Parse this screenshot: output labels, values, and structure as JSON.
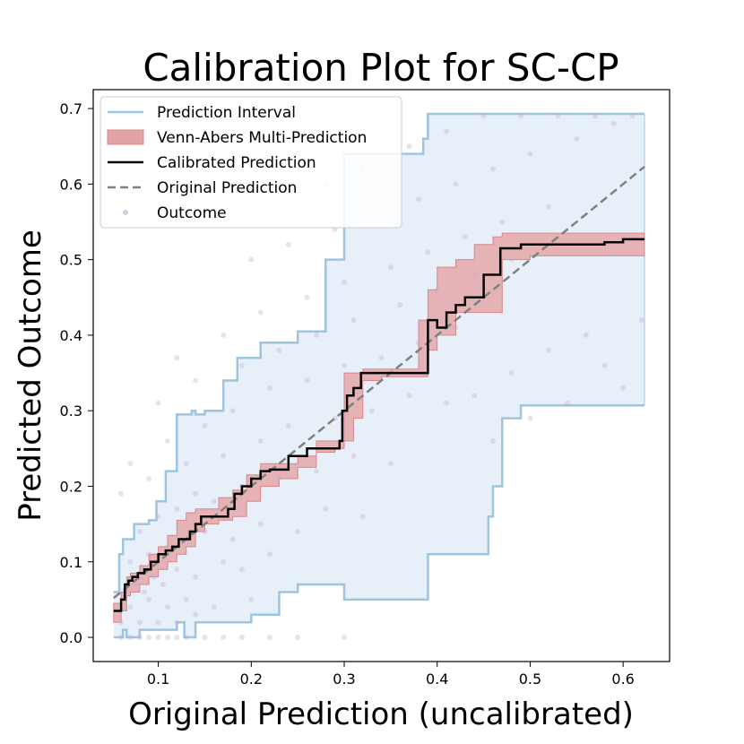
{
  "chart_data": {
    "type": "line",
    "title": "Calibration Plot for SC-CP",
    "xlabel": "Original Prediction (uncalibrated)",
    "ylabel": "Predicted Outcome",
    "xlim": [
      0.03,
      0.65
    ],
    "ylim": [
      -0.032,
      0.725
    ],
    "xticks": [
      0.1,
      0.2,
      0.3,
      0.4,
      0.5,
      0.6
    ],
    "yticks": [
      0.0,
      0.1,
      0.2,
      0.3,
      0.4,
      0.5,
      0.6,
      0.7
    ],
    "xtick_labels": [
      "0.1",
      "0.2",
      "0.3",
      "0.4",
      "0.5",
      "0.6"
    ],
    "ytick_labels": [
      "0.0",
      "0.1",
      "0.2",
      "0.3",
      "0.4",
      "0.5",
      "0.6",
      "0.7"
    ],
    "grid": false,
    "legend_position": "top-left",
    "legend": [
      {
        "label": "Prediction Interval",
        "kind": "line",
        "color": "#9ec4df"
      },
      {
        "label": "Venn-Abers Multi-Prediction",
        "kind": "patch",
        "color": "#e2a3a6"
      },
      {
        "label": "Calibrated Prediction",
        "kind": "line",
        "color": "#000000"
      },
      {
        "label": "Original Prediction",
        "kind": "dashed",
        "color": "#808080"
      },
      {
        "label": "Outcome",
        "kind": "marker",
        "color": "#c8a6d4"
      }
    ],
    "prediction_interval": {
      "color": "#9ec4df",
      "fill": "#e7f0f9",
      "x": [
        0.052,
        0.058,
        0.062,
        0.066,
        0.074,
        0.08,
        0.09,
        0.098,
        0.108,
        0.12,
        0.128,
        0.136,
        0.14,
        0.15,
        0.17,
        0.185,
        0.2,
        0.21,
        0.23,
        0.25,
        0.27,
        0.28,
        0.3,
        0.33,
        0.35,
        0.37,
        0.385,
        0.39,
        0.44,
        0.455,
        0.46,
        0.47,
        0.49,
        0.52,
        0.56,
        0.6,
        0.623
      ],
      "upper": [
        0.06,
        0.11,
        0.13,
        0.13,
        0.15,
        0.15,
        0.155,
        0.18,
        0.22,
        0.295,
        0.295,
        0.3,
        0.295,
        0.3,
        0.34,
        0.37,
        0.37,
        0.39,
        0.39,
        0.405,
        0.405,
        0.5,
        0.64,
        0.64,
        0.64,
        0.64,
        0.66,
        0.693,
        0.693,
        0.693,
        0.693,
        0.693,
        0.693,
        0.693,
        0.693,
        0.693,
        0.693
      ],
      "lower": [
        0.0,
        0.0,
        0.01,
        0.0,
        0.0,
        0.01,
        0.01,
        0.01,
        0.01,
        0.02,
        0.0,
        0.0,
        0.02,
        0.02,
        0.02,
        0.02,
        0.03,
        0.03,
        0.06,
        0.07,
        0.07,
        0.07,
        0.05,
        0.05,
        0.05,
        0.05,
        0.05,
        0.11,
        0.11,
        0.16,
        0.2,
        0.29,
        0.307,
        0.307,
        0.307,
        0.307,
        0.307
      ]
    },
    "venn_abers_band": {
      "color": "#d9868b",
      "fill": "#e4a7aa",
      "x": [
        0.052,
        0.06,
        0.066,
        0.07,
        0.08,
        0.09,
        0.1,
        0.11,
        0.12,
        0.13,
        0.14,
        0.15,
        0.165,
        0.18,
        0.195,
        0.21,
        0.23,
        0.25,
        0.27,
        0.29,
        0.3,
        0.31,
        0.32,
        0.34,
        0.36,
        0.38,
        0.39,
        0.4,
        0.42,
        0.44,
        0.46,
        0.47,
        0.5,
        0.55,
        0.6,
        0.623
      ],
      "upper": [
        0.045,
        0.06,
        0.08,
        0.085,
        0.095,
        0.11,
        0.12,
        0.135,
        0.155,
        0.165,
        0.17,
        0.17,
        0.185,
        0.195,
        0.215,
        0.23,
        0.23,
        0.24,
        0.26,
        0.26,
        0.35,
        0.35,
        0.355,
        0.355,
        0.355,
        0.42,
        0.46,
        0.49,
        0.5,
        0.52,
        0.53,
        0.535,
        0.535,
        0.535,
        0.535,
        0.535
      ],
      "lower": [
        0.02,
        0.035,
        0.055,
        0.06,
        0.07,
        0.08,
        0.09,
        0.1,
        0.11,
        0.12,
        0.14,
        0.15,
        0.155,
        0.16,
        0.18,
        0.2,
        0.21,
        0.225,
        0.245,
        0.25,
        0.26,
        0.29,
        0.34,
        0.345,
        0.345,
        0.345,
        0.38,
        0.4,
        0.43,
        0.43,
        0.43,
        0.5,
        0.505,
        0.505,
        0.505,
        0.505
      ]
    },
    "calibrated_prediction": {
      "color": "#000000",
      "x": [
        0.052,
        0.058,
        0.06,
        0.064,
        0.068,
        0.072,
        0.078,
        0.085,
        0.092,
        0.1,
        0.108,
        0.115,
        0.122,
        0.128,
        0.134,
        0.14,
        0.146,
        0.155,
        0.165,
        0.175,
        0.182,
        0.19,
        0.2,
        0.21,
        0.22,
        0.23,
        0.24,
        0.25,
        0.26,
        0.27,
        0.28,
        0.29,
        0.295,
        0.298,
        0.303,
        0.31,
        0.318,
        0.33,
        0.35,
        0.37,
        0.385,
        0.39,
        0.4,
        0.41,
        0.42,
        0.43,
        0.44,
        0.45,
        0.46,
        0.468,
        0.475,
        0.49,
        0.51,
        0.54,
        0.57,
        0.58,
        0.6,
        0.623
      ],
      "y": [
        0.035,
        0.035,
        0.05,
        0.07,
        0.075,
        0.08,
        0.085,
        0.09,
        0.1,
        0.11,
        0.115,
        0.12,
        0.13,
        0.13,
        0.14,
        0.15,
        0.16,
        0.16,
        0.16,
        0.17,
        0.19,
        0.2,
        0.21,
        0.22,
        0.222,
        0.222,
        0.24,
        0.24,
        0.25,
        0.25,
        0.25,
        0.25,
        0.26,
        0.3,
        0.32,
        0.33,
        0.35,
        0.35,
        0.35,
        0.35,
        0.35,
        0.42,
        0.41,
        0.43,
        0.44,
        0.45,
        0.45,
        0.48,
        0.48,
        0.515,
        0.515,
        0.52,
        0.52,
        0.52,
        0.52,
        0.523,
        0.527,
        0.527
      ]
    },
    "original_prediction": {
      "color": "#808080",
      "x": [
        0.052,
        0.623
      ],
      "y": [
        0.052,
        0.623
      ]
    },
    "outcomes": {
      "color": "#c8a6d4",
      "points": [
        [
          0.06,
          0.0
        ],
        [
          0.07,
          0.0
        ],
        [
          0.08,
          0.0
        ],
        [
          0.09,
          0.0
        ],
        [
          0.1,
          0.0
        ],
        [
          0.11,
          0.0
        ],
        [
          0.12,
          0.0
        ],
        [
          0.13,
          0.0
        ],
        [
          0.15,
          0.0
        ],
        [
          0.17,
          0.0
        ],
        [
          0.19,
          0.0
        ],
        [
          0.22,
          0.0
        ],
        [
          0.25,
          0.0
        ],
        [
          0.3,
          0.0
        ],
        [
          0.06,
          0.02
        ],
        [
          0.08,
          0.02
        ],
        [
          0.1,
          0.02
        ],
        [
          0.12,
          0.02
        ],
        [
          0.14,
          0.03
        ],
        [
          0.07,
          0.04
        ],
        [
          0.09,
          0.05
        ],
        [
          0.11,
          0.04
        ],
        [
          0.13,
          0.05
        ],
        [
          0.16,
          0.04
        ],
        [
          0.2,
          0.05
        ],
        [
          0.065,
          0.06
        ],
        [
          0.075,
          0.07
        ],
        [
          0.085,
          0.06
        ],
        [
          0.095,
          0.08
        ],
        [
          0.105,
          0.07
        ],
        [
          0.12,
          0.09
        ],
        [
          0.14,
          0.08
        ],
        [
          0.17,
          0.1
        ],
        [
          0.19,
          0.09
        ],
        [
          0.22,
          0.11
        ],
        [
          0.07,
          0.1
        ],
        [
          0.09,
          0.11
        ],
        [
          0.11,
          0.12
        ],
        [
          0.13,
          0.13
        ],
        [
          0.15,
          0.14
        ],
        [
          0.18,
          0.13
        ],
        [
          0.21,
          0.15
        ],
        [
          0.25,
          0.14
        ],
        [
          0.28,
          0.17
        ],
        [
          0.32,
          0.16
        ],
        [
          0.08,
          0.14
        ],
        [
          0.1,
          0.16
        ],
        [
          0.12,
          0.17
        ],
        [
          0.14,
          0.19
        ],
        [
          0.16,
          0.18
        ],
        [
          0.19,
          0.2
        ],
        [
          0.23,
          0.21
        ],
        [
          0.27,
          0.22
        ],
        [
          0.31,
          0.24
        ],
        [
          0.35,
          0.23
        ],
        [
          0.06,
          0.19
        ],
        [
          0.09,
          0.21
        ],
        [
          0.13,
          0.23
        ],
        [
          0.17,
          0.24
        ],
        [
          0.21,
          0.26
        ],
        [
          0.24,
          0.28
        ],
        [
          0.29,
          0.29
        ],
        [
          0.33,
          0.3
        ],
        [
          0.37,
          0.32
        ],
        [
          0.41,
          0.31
        ],
        [
          0.07,
          0.23
        ],
        [
          0.11,
          0.26
        ],
        [
          0.15,
          0.28
        ],
        [
          0.18,
          0.3
        ],
        [
          0.22,
          0.33
        ],
        [
          0.26,
          0.34
        ],
        [
          0.3,
          0.36
        ],
        [
          0.34,
          0.37
        ],
        [
          0.38,
          0.39
        ],
        [
          0.42,
          0.41
        ],
        [
          0.1,
          0.31
        ],
        [
          0.14,
          0.34
        ],
        [
          0.19,
          0.36
        ],
        [
          0.23,
          0.38
        ],
        [
          0.27,
          0.4
        ],
        [
          0.31,
          0.42
        ],
        [
          0.36,
          0.44
        ],
        [
          0.4,
          0.46
        ],
        [
          0.44,
          0.48
        ],
        [
          0.48,
          0.5
        ],
        [
          0.12,
          0.37
        ],
        [
          0.17,
          0.4
        ],
        [
          0.21,
          0.43
        ],
        [
          0.26,
          0.45
        ],
        [
          0.3,
          0.47
        ],
        [
          0.35,
          0.49
        ],
        [
          0.39,
          0.51
        ],
        [
          0.43,
          0.53
        ],
        [
          0.47,
          0.55
        ],
        [
          0.52,
          0.57
        ],
        [
          0.2,
          0.5
        ],
        [
          0.24,
          0.52
        ],
        [
          0.29,
          0.54
        ],
        [
          0.33,
          0.56
        ],
        [
          0.38,
          0.58
        ],
        [
          0.42,
          0.6
        ],
        [
          0.46,
          0.62
        ],
        [
          0.5,
          0.64
        ],
        [
          0.55,
          0.66
        ],
        [
          0.59,
          0.68
        ],
        [
          0.23,
          0.56
        ],
        [
          0.28,
          0.6
        ],
        [
          0.32,
          0.62
        ],
        [
          0.37,
          0.65
        ],
        [
          0.41,
          0.67
        ],
        [
          0.45,
          0.69
        ],
        [
          0.49,
          0.69
        ],
        [
          0.53,
          0.69
        ],
        [
          0.57,
          0.69
        ],
        [
          0.61,
          0.69
        ],
        [
          0.44,
          0.32
        ],
        [
          0.48,
          0.35
        ],
        [
          0.52,
          0.38
        ],
        [
          0.56,
          0.4
        ],
        [
          0.6,
          0.33
        ],
        [
          0.46,
          0.26
        ],
        [
          0.5,
          0.29
        ],
        [
          0.54,
          0.31
        ],
        [
          0.58,
          0.36
        ],
        [
          0.62,
          0.42
        ]
      ]
    }
  }
}
